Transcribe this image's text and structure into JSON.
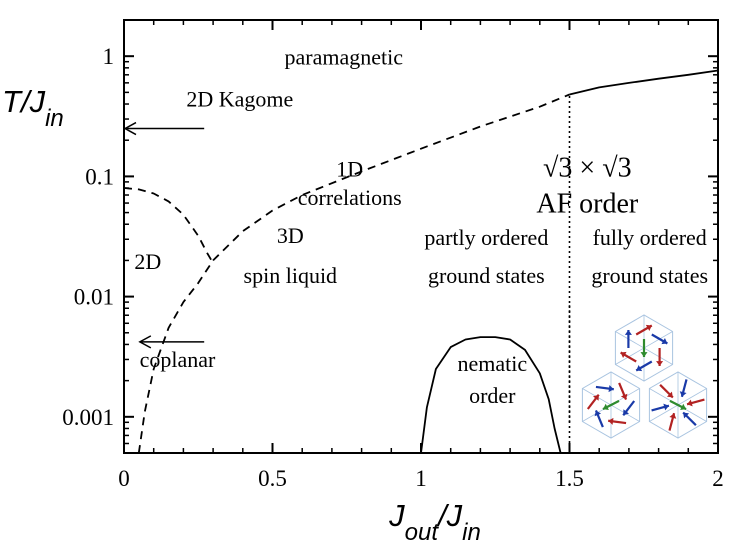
{
  "chart_data": {
    "type": "line",
    "title": "",
    "xlabel": "J_out/J_in",
    "ylabel": "T/J_in",
    "xscale": "linear",
    "yscale": "log",
    "xlim": [
      0,
      2
    ],
    "ylim": [
      0.0005,
      2
    ],
    "x_ticks": [
      "0",
      "0.5",
      "1",
      "1.5",
      "2"
    ],
    "y_ticks": [
      "0.001",
      "0.01",
      "0.1",
      "1"
    ],
    "grid": false,
    "series": [
      {
        "style": "dashed",
        "x": [
          0.05,
          0.07,
          0.1,
          0.15,
          0.2,
          0.25,
          0.3,
          0.4,
          0.5,
          0.6,
          0.8,
          1.0,
          1.2,
          1.4,
          1.5
        ],
        "y": [
          0.0005,
          0.0011,
          0.0025,
          0.0055,
          0.009,
          0.013,
          0.02,
          0.035,
          0.052,
          0.07,
          0.11,
          0.17,
          0.26,
          0.38,
          0.48
        ]
      },
      {
        "style": "dashed",
        "x": [
          0.0,
          0.05,
          0.1,
          0.15,
          0.2,
          0.25,
          0.28,
          0.3
        ],
        "y": [
          0.08,
          0.078,
          0.072,
          0.062,
          0.048,
          0.032,
          0.023,
          0.019
        ]
      },
      {
        "style": "solid",
        "x": [
          1.5,
          1.6,
          1.7,
          1.8,
          1.9,
          2.0
        ],
        "y": [
          0.48,
          0.55,
          0.6,
          0.65,
          0.7,
          0.76
        ]
      },
      {
        "style": "solid",
        "x": [
          1.0,
          1.02,
          1.05,
          1.1,
          1.15,
          1.2,
          1.25,
          1.3,
          1.35,
          1.4,
          1.43,
          1.45,
          1.47
        ],
        "y": [
          0.0005,
          0.0012,
          0.0025,
          0.0038,
          0.0044,
          0.0046,
          0.0046,
          0.0044,
          0.0036,
          0.0023,
          0.0014,
          0.0008,
          0.0005
        ]
      },
      {
        "style": "dotted",
        "x": [
          1.5,
          1.5
        ],
        "y": [
          0.0005,
          0.48
        ]
      },
      {
        "style": "dotted",
        "x": [
          1.5,
          1.5
        ],
        "y": [
          0.0009,
          0.0085
        ]
      }
    ],
    "annotations": [
      {
        "id": "paramagnetic",
        "text": "paramagnetic",
        "x": 0.74,
        "y": 0.85
      },
      {
        "id": "kagome",
        "text": "2D Kagome",
        "x": 0.39,
        "y": 0.38
      },
      {
        "id": "corr1",
        "text": "1D",
        "x": 0.76,
        "y": 0.1
      },
      {
        "id": "corr2",
        "text": "correlations",
        "x": 0.76,
        "y": 0.058
      },
      {
        "id": "sqrt_order",
        "text": "√3 × √3",
        "x": 1.56,
        "y": 0.1
      },
      {
        "id": "af_order",
        "text": "AF order",
        "x": 1.56,
        "y": 0.05
      },
      {
        "id": "twod",
        "text": "2D",
        "x": 0.08,
        "y": 0.017
      },
      {
        "id": "spin1",
        "text": "3D",
        "x": 0.56,
        "y": 0.028
      },
      {
        "id": "spin2",
        "text": "spin liquid",
        "x": 0.56,
        "y": 0.013
      },
      {
        "id": "partly1",
        "text": "partly ordered",
        "x": 1.22,
        "y": 0.027
      },
      {
        "id": "partly2",
        "text": "ground states",
        "x": 1.22,
        "y": 0.013
      },
      {
        "id": "fully1",
        "text": "fully ordered",
        "x": 1.77,
        "y": 0.027
      },
      {
        "id": "fully2",
        "text": "ground states",
        "x": 1.77,
        "y": 0.013
      },
      {
        "id": "coplanar",
        "text": "coplanar",
        "x": 0.18,
        "y": 0.0026
      },
      {
        "id": "nem1",
        "text": "nematic",
        "x": 1.24,
        "y": 0.0024
      },
      {
        "id": "nem2",
        "text": "order",
        "x": 1.24,
        "y": 0.0013
      }
    ],
    "arrows": [
      {
        "id": "kagome-arrow",
        "x_from": 0.27,
        "x_to": 0.0,
        "y": 0.25
      },
      {
        "id": "coplanar-arrow",
        "x_from": 0.27,
        "x_to": 0.05,
        "y": 0.0042
      }
    ]
  },
  "inset": {
    "description_icon": "spin-structure-icon",
    "colors": {
      "red": "#b22222",
      "blue": "#1a3aa8",
      "green": "#2e8b2e",
      "lattice": "#a9c4e0"
    }
  }
}
